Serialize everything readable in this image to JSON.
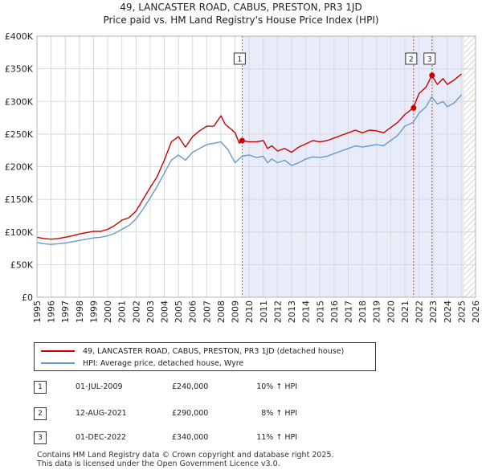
{
  "title_line1": "49, LANCASTER ROAD, CABUS, PRESTON, PR3 1JD",
  "title_line2": "Price paid vs. HM Land Registry's House Price Index (HPI)",
  "chart_data": {
    "type": "line",
    "x_min": 1995,
    "x_max": 2026,
    "ylim": [
      0,
      400000
    ],
    "y_ticks": [
      0,
      50000,
      100000,
      150000,
      200000,
      250000,
      300000,
      350000,
      400000
    ],
    "y_tick_labels": [
      "£0",
      "£50K",
      "£100K",
      "£150K",
      "£200K",
      "£250K",
      "£300K",
      "£350K",
      "£400K"
    ],
    "x_ticks": [
      1995,
      1996,
      1997,
      1998,
      1999,
      2000,
      2001,
      2002,
      2003,
      2004,
      2005,
      2006,
      2007,
      2008,
      2009,
      2010,
      2011,
      2012,
      2013,
      2014,
      2015,
      2016,
      2017,
      2018,
      2019,
      2020,
      2021,
      2022,
      2023,
      2024,
      2025,
      2026
    ],
    "shaded_region": [
      2009.5,
      2025.2
    ],
    "hatched_from": 2025.2,
    "series": [
      {
        "name": "49, LANCASTER ROAD, CABUS, PRESTON, PR3 1JD (detached house)",
        "color": "#cc0000",
        "points": [
          [
            1995,
            92000
          ],
          [
            1995.5,
            90000
          ],
          [
            1996,
            89000
          ],
          [
            1996.5,
            90000
          ],
          [
            1997,
            92000
          ],
          [
            1997.5,
            94000
          ],
          [
            1998,
            97000
          ],
          [
            1998.5,
            99000
          ],
          [
            1999,
            101000
          ],
          [
            1999.5,
            101000
          ],
          [
            2000,
            104000
          ],
          [
            2000.5,
            110000
          ],
          [
            2001,
            118000
          ],
          [
            2001.5,
            122000
          ],
          [
            2002,
            132000
          ],
          [
            2002.5,
            150000
          ],
          [
            2003,
            168000
          ],
          [
            2003.5,
            185000
          ],
          [
            2004,
            210000
          ],
          [
            2004.5,
            238000
          ],
          [
            2005,
            246000
          ],
          [
            2005.5,
            230000
          ],
          [
            2006,
            246000
          ],
          [
            2006.5,
            255000
          ],
          [
            2007,
            262000
          ],
          [
            2007.5,
            262000
          ],
          [
            2008,
            278000
          ],
          [
            2008.3,
            265000
          ],
          [
            2008.7,
            258000
          ],
          [
            2009,
            252000
          ],
          [
            2009.3,
            236000
          ],
          [
            2009.5,
            240000
          ],
          [
            2010,
            238000
          ],
          [
            2010.5,
            238000
          ],
          [
            2011,
            240000
          ],
          [
            2011.3,
            228000
          ],
          [
            2011.6,
            232000
          ],
          [
            2012,
            224000
          ],
          [
            2012.5,
            228000
          ],
          [
            2013,
            222000
          ],
          [
            2013.5,
            230000
          ],
          [
            2014,
            235000
          ],
          [
            2014.5,
            240000
          ],
          [
            2015,
            238000
          ],
          [
            2015.5,
            240000
          ],
          [
            2016,
            244000
          ],
          [
            2016.5,
            248000
          ],
          [
            2017,
            252000
          ],
          [
            2017.5,
            256000
          ],
          [
            2018,
            252000
          ],
          [
            2018.5,
            256000
          ],
          [
            2019,
            255000
          ],
          [
            2019.5,
            252000
          ],
          [
            2020,
            260000
          ],
          [
            2020.5,
            268000
          ],
          [
            2021,
            280000
          ],
          [
            2021.6,
            290000
          ],
          [
            2022,
            312000
          ],
          [
            2022.5,
            322000
          ],
          [
            2022.9,
            340000
          ],
          [
            2023.3,
            326000
          ],
          [
            2023.7,
            335000
          ],
          [
            2024,
            326000
          ],
          [
            2024.5,
            333000
          ],
          [
            2025,
            342000
          ]
        ]
      },
      {
        "name": "HPI: Average price, detached house, Wyre",
        "color": "#6699cc",
        "points": [
          [
            1995,
            84000
          ],
          [
            1995.5,
            82000
          ],
          [
            1996,
            81000
          ],
          [
            1996.5,
            82000
          ],
          [
            1997,
            83000
          ],
          [
            1997.5,
            85000
          ],
          [
            1998,
            87000
          ],
          [
            1998.5,
            89000
          ],
          [
            1999,
            91000
          ],
          [
            1999.5,
            92000
          ],
          [
            2000,
            94000
          ],
          [
            2000.5,
            98000
          ],
          [
            2001,
            104000
          ],
          [
            2001.5,
            110000
          ],
          [
            2002,
            120000
          ],
          [
            2002.5,
            135000
          ],
          [
            2003,
            152000
          ],
          [
            2003.5,
            170000
          ],
          [
            2004,
            190000
          ],
          [
            2004.5,
            210000
          ],
          [
            2005,
            218000
          ],
          [
            2005.5,
            210000
          ],
          [
            2006,
            222000
          ],
          [
            2006.5,
            228000
          ],
          [
            2007,
            234000
          ],
          [
            2007.5,
            236000
          ],
          [
            2008,
            238000
          ],
          [
            2008.5,
            226000
          ],
          [
            2009,
            206000
          ],
          [
            2009.5,
            216000
          ],
          [
            2010,
            218000
          ],
          [
            2010.5,
            214000
          ],
          [
            2011,
            216000
          ],
          [
            2011.3,
            206000
          ],
          [
            2011.6,
            212000
          ],
          [
            2012,
            206000
          ],
          [
            2012.5,
            210000
          ],
          [
            2013,
            202000
          ],
          [
            2013.5,
            206000
          ],
          [
            2014,
            212000
          ],
          [
            2014.5,
            215000
          ],
          [
            2015,
            214000
          ],
          [
            2015.5,
            216000
          ],
          [
            2016,
            220000
          ],
          [
            2016.5,
            224000
          ],
          [
            2017,
            228000
          ],
          [
            2017.5,
            232000
          ],
          [
            2018,
            230000
          ],
          [
            2018.5,
            232000
          ],
          [
            2019,
            234000
          ],
          [
            2019.5,
            232000
          ],
          [
            2020,
            240000
          ],
          [
            2020.5,
            248000
          ],
          [
            2021,
            262000
          ],
          [
            2021.6,
            268000
          ],
          [
            2022,
            282000
          ],
          [
            2022.5,
            292000
          ],
          [
            2022.9,
            307000
          ],
          [
            2023.3,
            296000
          ],
          [
            2023.7,
            300000
          ],
          [
            2024,
            292000
          ],
          [
            2024.5,
            298000
          ],
          [
            2025,
            310000
          ]
        ]
      }
    ],
    "markers": [
      {
        "label": "1",
        "x": 2009.5,
        "y": 240000
      },
      {
        "label": "2",
        "x": 2021.62,
        "y": 290000
      },
      {
        "label": "3",
        "x": 2022.92,
        "y": 340000
      }
    ]
  },
  "legend": {
    "property": "49, LANCASTER ROAD, CABUS, PRESTON, PR3 1JD (detached house)",
    "hpi": "HPI: Average price, detached house, Wyre"
  },
  "transactions": [
    {
      "num": "1",
      "date": "01-JUL-2009",
      "price": "£240,000",
      "hpi": "10% ↑ HPI"
    },
    {
      "num": "2",
      "date": "12-AUG-2021",
      "price": "£290,000",
      "hpi": "8% ↑ HPI"
    },
    {
      "num": "3",
      "date": "01-DEC-2022",
      "price": "£340,000",
      "hpi": "11% ↑ HPI"
    }
  ],
  "footer_line1": "Contains HM Land Registry data © Crown copyright and database right 2025.",
  "footer_line2": "This data is licensed under the Open Government Licence v3.0."
}
